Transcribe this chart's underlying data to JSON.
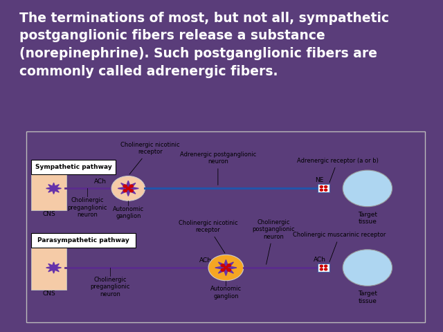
{
  "bg_color": "#5a3d7a",
  "title_bg": "#0d0814",
  "text_color": "#ffffff",
  "title_text": "The terminations of most, but not all, sympathetic\npostganglionic fibers release a substance\n(norepinephrine). Such postganglionic fibers are\ncommonly called adrenergic fibers.",
  "title_fontsize": 13.5,
  "diagram_bg": "#ffffff",
  "sympathetic_label": "Sympathetic pathway",
  "parasympathetic_label": "Parasympathetic pathway",
  "cns_color": "#f5cba7",
  "ganglion_color_symp": "#f5cba7",
  "ganglion_color_para": "#f5a623",
  "target_color": "#aed6f1",
  "neuron_color": "#6633aa",
  "line_color_pre": "#5b2c8d",
  "line_color_post_symp": "#2255aa",
  "line_color_post_para": "#5b2c8d",
  "dot_color": "#cc0000",
  "label_fontsize": 6.5
}
